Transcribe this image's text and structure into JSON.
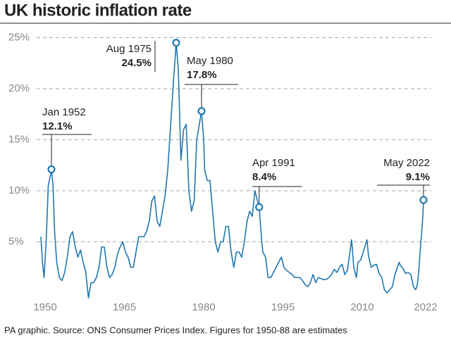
{
  "chart_data": {
    "type": "line",
    "title": "UK historic inflation rate",
    "source": "PA graphic. Source: ONS Consumer Prices Index. Figures for 1950-88 are estimates",
    "color": "#1f77b0",
    "grid": true,
    "xlim": [
      1949,
      2023
    ],
    "ylim": [
      -1,
      26
    ],
    "xticks": [
      1950,
      1965,
      1980,
      1995,
      2010,
      2022
    ],
    "yticks": [
      {
        "value": 5,
        "label": "5%"
      },
      {
        "value": 10,
        "label": "10%"
      },
      {
        "value": 15,
        "label": "15%"
      },
      {
        "value": 20,
        "label": "20%"
      },
      {
        "value": 25,
        "label": "25%"
      }
    ],
    "x": [
      1950.0,
      1950.3,
      1950.6,
      1951.0,
      1951.4,
      1951.8,
      1952.0,
      1952.3,
      1952.6,
      1953.0,
      1953.5,
      1954.0,
      1954.5,
      1955.0,
      1955.5,
      1956.0,
      1956.5,
      1957.0,
      1957.5,
      1958.0,
      1958.5,
      1959.0,
      1959.5,
      1960.0,
      1960.5,
      1961.0,
      1961.5,
      1962.0,
      1962.5,
      1963.0,
      1963.5,
      1964.0,
      1964.5,
      1965.0,
      1965.5,
      1966.0,
      1966.5,
      1967.0,
      1967.5,
      1968.0,
      1968.5,
      1969.0,
      1969.5,
      1970.0,
      1970.5,
      1971.0,
      1971.5,
      1972.0,
      1972.5,
      1973.0,
      1973.5,
      1974.0,
      1974.5,
      1975.0,
      1975.6,
      1976.0,
      1976.5,
      1977.0,
      1977.5,
      1978.0,
      1978.5,
      1979.0,
      1979.5,
      1980.4,
      1980.8,
      1981.0,
      1981.5,
      1982.0,
      1982.5,
      1983.0,
      1983.5,
      1984.0,
      1984.5,
      1985.0,
      1985.5,
      1986.0,
      1986.5,
      1987.0,
      1987.5,
      1988.0,
      1988.5,
      1989.0,
      1989.5,
      1990.0,
      1990.5,
      1991.3,
      1991.8,
      1992.0,
      1992.5,
      1993.0,
      1993.5,
      1994.0,
      1994.5,
      1995.0,
      1995.5,
      1996.0,
      1996.5,
      1997.0,
      1997.5,
      1998.0,
      1998.5,
      1999.0,
      1999.5,
      2000.0,
      2000.5,
      2001.0,
      2001.5,
      2002.0,
      2002.5,
      2003.0,
      2003.5,
      2004.0,
      2004.5,
      2005.0,
      2005.5,
      2006.0,
      2006.5,
      2007.0,
      2007.5,
      2008.0,
      2008.8,
      2009.2,
      2009.7,
      2010.0,
      2010.5,
      2011.0,
      2011.7,
      2012.0,
      2012.5,
      2013.0,
      2013.5,
      2014.0,
      2014.5,
      2015.0,
      2015.5,
      2016.0,
      2016.5,
      2017.0,
      2017.8,
      2018.0,
      2018.5,
      2019.0,
      2019.5,
      2020.0,
      2020.5,
      2020.9,
      2021.2,
      2021.5,
      2021.9,
      2022.0,
      2022.3,
      2022.4
    ],
    "values": [
      5.5,
      3.0,
      1.5,
      5,
      10.5,
      11.5,
      12.1,
      10.5,
      6,
      3,
      1.5,
      1.2,
      2,
      3.5,
      5.5,
      6,
      4.5,
      3.5,
      4.2,
      3,
      2,
      -0.5,
      1,
      1,
      1.5,
      2.5,
      4.5,
      4.5,
      2.5,
      1.5,
      1.8,
      2.5,
      3.8,
      4.5,
      5,
      4,
      3.5,
      2.5,
      2.5,
      4,
      5.5,
      5.5,
      5.5,
      6,
      7,
      9,
      9.5,
      7,
      6.5,
      8,
      9.5,
      12,
      16,
      20,
      24.5,
      22,
      13,
      16,
      16.5,
      10,
      8,
      9,
      15,
      17.8,
      15,
      12,
      11,
      11,
      8,
      5,
      4,
      5,
      5,
      6.5,
      6.5,
      4,
      2.5,
      4,
      4,
      3.5,
      5,
      7,
      8,
      7.5,
      10,
      8.4,
      5,
      4,
      3.5,
      1.5,
      1.5,
      2,
      2.5,
      3,
      3.5,
      2.5,
      2.2,
      2.0,
      1.8,
      1.5,
      1.5,
      1.5,
      1.2,
      0.8,
      0.6,
      1,
      1.8,
      1,
      1.5,
      1.4,
      1.3,
      1.3,
      1.5,
      1.8,
      2.3,
      2,
      2.5,
      2.8,
      1.8,
      2.2,
      5.2,
      2.5,
      1.5,
      3,
      3.2,
      4,
      5.2,
      3.6,
      2.5,
      2.7,
      2.8,
      1.9,
      1.5,
      0.3,
      0,
      0.3,
      0.6,
      1.8,
      3.0,
      2.7,
      2.4,
      1.9,
      2.0,
      1.8,
      0.6,
      0.3,
      0.7,
      2.1,
      5.1,
      5.5,
      7.8,
      9.1
    ],
    "annotations": [
      {
        "label": "Jan 1952",
        "x": 1952.0,
        "value": 12.1,
        "value_label": "12.1%"
      },
      {
        "label": "Aug 1975",
        "x": 1975.6,
        "value": 24.5,
        "value_label": "24.5%"
      },
      {
        "label": "May 1980",
        "x": 1980.4,
        "value": 17.8,
        "value_label": "17.8%"
      },
      {
        "label": "Apr 1991",
        "x": 1991.3,
        "value": 8.4,
        "value_label": "8.4%"
      },
      {
        "label": "May 2022",
        "x": 2022.4,
        "value": 9.1,
        "value_label": "9.1%"
      }
    ]
  }
}
